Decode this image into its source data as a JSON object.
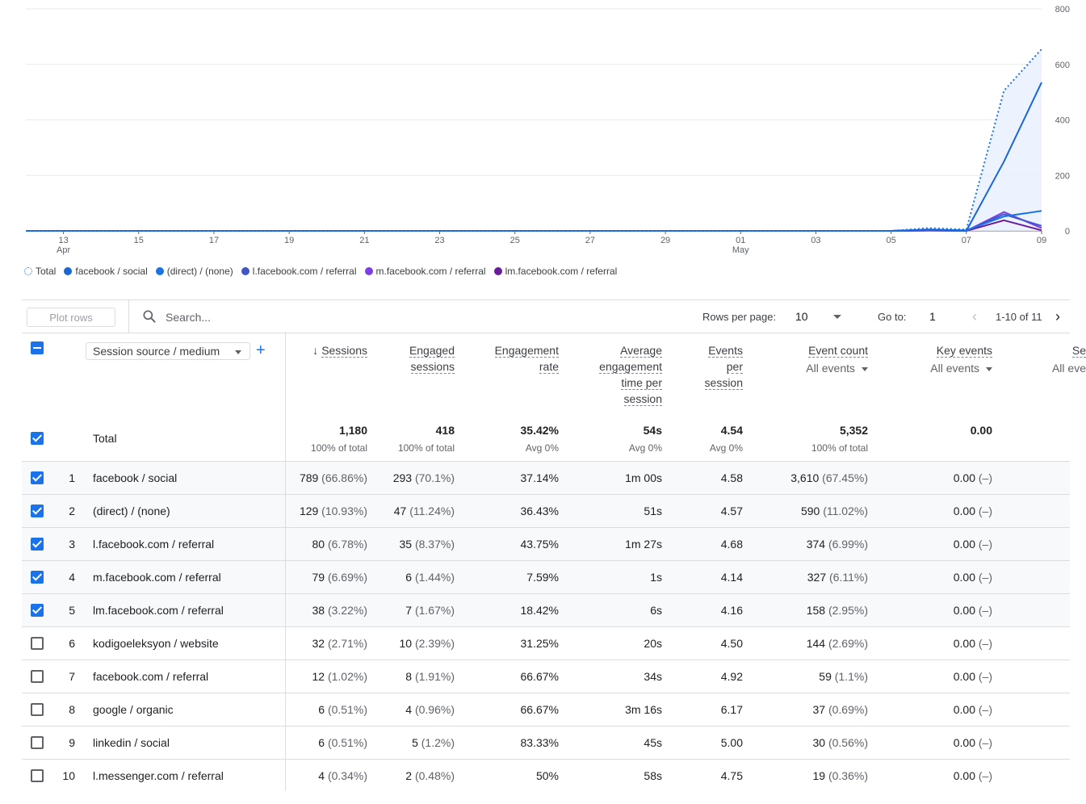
{
  "chart_data": {
    "type": "line",
    "x_ticks": [
      {
        "label": "13",
        "sub": "Apr"
      },
      {
        "label": "15",
        "sub": ""
      },
      {
        "label": "17",
        "sub": ""
      },
      {
        "label": "19",
        "sub": ""
      },
      {
        "label": "21",
        "sub": ""
      },
      {
        "label": "23",
        "sub": ""
      },
      {
        "label": "25",
        "sub": ""
      },
      {
        "label": "27",
        "sub": ""
      },
      {
        "label": "29",
        "sub": ""
      },
      {
        "label": "01",
        "sub": "May"
      },
      {
        "label": "03",
        "sub": ""
      },
      {
        "label": "05",
        "sub": ""
      },
      {
        "label": "07",
        "sub": ""
      },
      {
        "label": "09",
        "sub": ""
      }
    ],
    "y_ticks": [
      "800",
      "600",
      "400",
      "200",
      "0"
    ],
    "ylim": [
      0,
      800
    ],
    "x_days": [
      "Apr 12",
      "Apr 13",
      "Apr 14",
      "Apr 15",
      "Apr 16",
      "Apr 17",
      "Apr 18",
      "Apr 19",
      "Apr 20",
      "Apr 21",
      "Apr 22",
      "Apr 23",
      "Apr 24",
      "Apr 25",
      "Apr 26",
      "Apr 27",
      "Apr 28",
      "Apr 29",
      "Apr 30",
      "May 01",
      "May 02",
      "May 03",
      "May 04",
      "May 05",
      "May 06",
      "May 07",
      "May 08",
      "May 09"
    ],
    "series": [
      {
        "name": "Total",
        "color": "#1a73e8",
        "style": "dotted",
        "values": [
          0,
          0,
          0,
          0,
          0,
          0,
          0,
          0,
          0,
          0,
          0,
          0,
          0,
          0,
          0,
          0,
          0,
          0,
          0,
          0,
          0,
          0,
          0,
          0,
          10,
          5,
          505,
          655
        ]
      },
      {
        "name": "facebook / social",
        "color": "#1967d2",
        "style": "solid",
        "values": [
          0,
          0,
          0,
          0,
          0,
          0,
          0,
          0,
          0,
          0,
          0,
          0,
          0,
          0,
          0,
          0,
          0,
          0,
          0,
          0,
          0,
          0,
          0,
          0,
          3,
          0,
          250,
          535
        ]
      },
      {
        "name": "(direct) / (none)",
        "color": "#1a73e8",
        "style": "solid",
        "values": [
          0,
          0,
          0,
          0,
          0,
          0,
          0,
          0,
          0,
          0,
          0,
          0,
          0,
          0,
          0,
          0,
          0,
          0,
          0,
          0,
          0,
          0,
          0,
          0,
          5,
          2,
          52,
          72
        ]
      },
      {
        "name": "l.facebook.com / referral",
        "color": "#4056c7",
        "style": "solid",
        "values": [
          0,
          0,
          0,
          0,
          0,
          0,
          0,
          0,
          0,
          0,
          0,
          0,
          0,
          0,
          0,
          0,
          0,
          0,
          0,
          0,
          0,
          0,
          0,
          0,
          2,
          1,
          60,
          18
        ]
      },
      {
        "name": "m.facebook.com / referral",
        "color": "#7b3fe4",
        "style": "solid",
        "values": [
          0,
          0,
          0,
          0,
          0,
          0,
          0,
          0,
          0,
          0,
          0,
          0,
          0,
          0,
          0,
          0,
          0,
          0,
          0,
          0,
          0,
          0,
          0,
          0,
          1,
          0,
          68,
          10
        ]
      },
      {
        "name": "lm.facebook.com / referral",
        "color": "#6a1b9a",
        "style": "solid",
        "values": [
          0,
          0,
          0,
          0,
          0,
          0,
          0,
          0,
          0,
          0,
          0,
          0,
          0,
          0,
          0,
          0,
          0,
          0,
          0,
          0,
          0,
          0,
          0,
          0,
          1,
          0,
          38,
          2
        ]
      }
    ]
  },
  "legend": [
    {
      "label": "Total",
      "color": "#1a73e8",
      "icon": "dotted-circle-icon"
    },
    {
      "label": "facebook / social",
      "color": "#1967d2",
      "icon": "dot-icon"
    },
    {
      "label": "(direct) / (none)",
      "color": "#1a73e8",
      "icon": "dot-icon"
    },
    {
      "label": "l.facebook.com / referral",
      "color": "#4056c7",
      "icon": "dot-icon"
    },
    {
      "label": "m.facebook.com / referral",
      "color": "#7b3fe4",
      "icon": "dot-icon"
    },
    {
      "label": "lm.facebook.com / referral",
      "color": "#6a1b9a",
      "icon": "dot-icon"
    }
  ],
  "toolbar": {
    "plot_rows_label": "Plot rows",
    "search_placeholder": "Search...",
    "rows_per_page_label": "Rows per page:",
    "rows_per_page_value": "10",
    "goto_label": "Go to:",
    "goto_value": "1",
    "page_range": "1-10 of 11"
  },
  "table": {
    "dimension_select": "Session source / medium",
    "columns": [
      {
        "key": "sessions",
        "lines": [
          "Sessions"
        ],
        "sorted": true,
        "sub": ""
      },
      {
        "key": "engaged",
        "lines": [
          "Engaged",
          "sessions"
        ],
        "sub": ""
      },
      {
        "key": "engrate",
        "lines": [
          "Engagement",
          "rate"
        ],
        "sub": ""
      },
      {
        "key": "avgtime",
        "lines": [
          "Average",
          "engagement",
          "time per",
          "session"
        ],
        "sub": ""
      },
      {
        "key": "eps",
        "lines": [
          "Events",
          "per",
          "session"
        ],
        "sub": ""
      },
      {
        "key": "evcount",
        "lines": [
          "Event count"
        ],
        "sub": "All events"
      },
      {
        "key": "keyev",
        "lines": [
          "Key events"
        ],
        "sub": "All events"
      },
      {
        "key": "extra",
        "lines": [
          "Se"
        ],
        "sub": "All eve"
      }
    ],
    "total": {
      "label": "Total",
      "sessions": "1,180",
      "sessions_sub": "100% of total",
      "engaged": "418",
      "engaged_sub": "100% of total",
      "engrate": "35.42%",
      "engrate_sub": "Avg 0%",
      "avgtime": "54s",
      "avgtime_sub": "Avg 0%",
      "eps": "4.54",
      "eps_sub": "Avg 0%",
      "evcount": "5,352",
      "evcount_sub": "100% of total",
      "keyev": "0.00"
    },
    "rows": [
      {
        "n": "1",
        "checked": true,
        "dim": "facebook / social",
        "sessions": "789",
        "sessions_pct": "(66.86%)",
        "engaged": "293",
        "engaged_pct": "(70.1%)",
        "engrate": "37.14%",
        "avgtime": "1m 00s",
        "eps": "4.58",
        "evcount": "3,610",
        "evcount_pct": "(67.45%)",
        "keyev": "0.00",
        "keyev_pct": "(–)"
      },
      {
        "n": "2",
        "checked": true,
        "dim": "(direct) / (none)",
        "sessions": "129",
        "sessions_pct": "(10.93%)",
        "engaged": "47",
        "engaged_pct": "(11.24%)",
        "engrate": "36.43%",
        "avgtime": "51s",
        "eps": "4.57",
        "evcount": "590",
        "evcount_pct": "(11.02%)",
        "keyev": "0.00",
        "keyev_pct": "(–)"
      },
      {
        "n": "3",
        "checked": true,
        "dim": "l.facebook.com / referral",
        "sessions": "80",
        "sessions_pct": "(6.78%)",
        "engaged": "35",
        "engaged_pct": "(8.37%)",
        "engrate": "43.75%",
        "avgtime": "1m 27s",
        "eps": "4.68",
        "evcount": "374",
        "evcount_pct": "(6.99%)",
        "keyev": "0.00",
        "keyev_pct": "(–)"
      },
      {
        "n": "4",
        "checked": true,
        "dim": "m.facebook.com / referral",
        "sessions": "79",
        "sessions_pct": "(6.69%)",
        "engaged": "6",
        "engaged_pct": "(1.44%)",
        "engrate": "7.59%",
        "avgtime": "1s",
        "eps": "4.14",
        "evcount": "327",
        "evcount_pct": "(6.11%)",
        "keyev": "0.00",
        "keyev_pct": "(–)"
      },
      {
        "n": "5",
        "checked": true,
        "dim": "lm.facebook.com / referral",
        "sessions": "38",
        "sessions_pct": "(3.22%)",
        "engaged": "7",
        "engaged_pct": "(1.67%)",
        "engrate": "18.42%",
        "avgtime": "6s",
        "eps": "4.16",
        "evcount": "158",
        "evcount_pct": "(2.95%)",
        "keyev": "0.00",
        "keyev_pct": "(–)"
      },
      {
        "n": "6",
        "checked": false,
        "dim": "kodigoeleksyon / website",
        "sessions": "32",
        "sessions_pct": "(2.71%)",
        "engaged": "10",
        "engaged_pct": "(2.39%)",
        "engrate": "31.25%",
        "avgtime": "20s",
        "eps": "4.50",
        "evcount": "144",
        "evcount_pct": "(2.69%)",
        "keyev": "0.00",
        "keyev_pct": "(–)"
      },
      {
        "n": "7",
        "checked": false,
        "dim": "facebook.com / referral",
        "sessions": "12",
        "sessions_pct": "(1.02%)",
        "engaged": "8",
        "engaged_pct": "(1.91%)",
        "engrate": "66.67%",
        "avgtime": "34s",
        "eps": "4.92",
        "evcount": "59",
        "evcount_pct": "(1.1%)",
        "keyev": "0.00",
        "keyev_pct": "(–)"
      },
      {
        "n": "8",
        "checked": false,
        "dim": "google / organic",
        "sessions": "6",
        "sessions_pct": "(0.51%)",
        "engaged": "4",
        "engaged_pct": "(0.96%)",
        "engrate": "66.67%",
        "avgtime": "3m 16s",
        "eps": "6.17",
        "evcount": "37",
        "evcount_pct": "(0.69%)",
        "keyev": "0.00",
        "keyev_pct": "(–)"
      },
      {
        "n": "9",
        "checked": false,
        "dim": "linkedin / social",
        "sessions": "6",
        "sessions_pct": "(0.51%)",
        "engaged": "5",
        "engaged_pct": "(1.2%)",
        "engrate": "83.33%",
        "avgtime": "45s",
        "eps": "5.00",
        "evcount": "30",
        "evcount_pct": "(0.56%)",
        "keyev": "0.00",
        "keyev_pct": "(–)"
      },
      {
        "n": "10",
        "checked": false,
        "dim": "l.messenger.com / referral",
        "sessions": "4",
        "sessions_pct": "(0.34%)",
        "engaged": "2",
        "engaged_pct": "(0.48%)",
        "engrate": "50%",
        "avgtime": "58s",
        "eps": "4.75",
        "evcount": "19",
        "evcount_pct": "(0.36%)",
        "keyev": "0.00",
        "keyev_pct": "(–)"
      }
    ]
  }
}
